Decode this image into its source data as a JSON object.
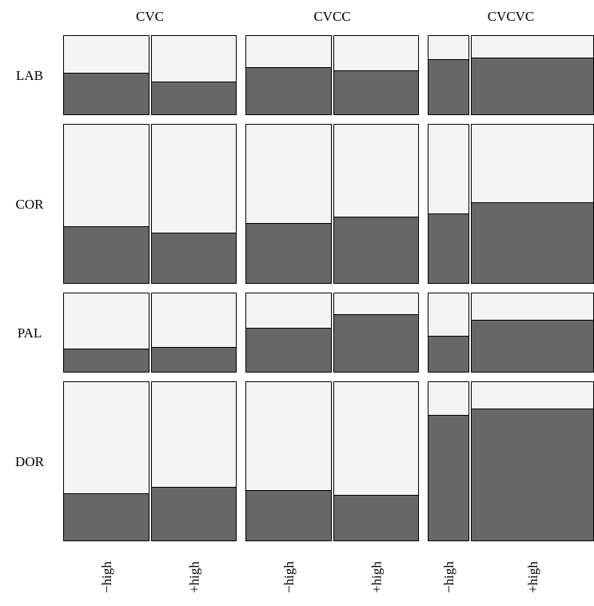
{
  "chart_data": {
    "type": "mosaic",
    "title": "",
    "columns": [
      {
        "name": "CVC",
        "subgroups": [
          "−high",
          "+high"
        ]
      },
      {
        "name": "CVCC",
        "subgroups": [
          "−high",
          "+high"
        ]
      },
      {
        "name": "CVCVC",
        "subgroups": [
          "−high",
          "+high"
        ]
      }
    ],
    "rows": [
      "LAB",
      "COR",
      "PAL",
      "DOR"
    ],
    "fill_color": "#676767",
    "background_color": "#f4f4f4",
    "column_subgroup_widths": [
      [
        0.5,
        0.5
      ],
      [
        0.5,
        0.5
      ],
      [
        0.25,
        0.75
      ]
    ],
    "row_heights": [
      0.15,
      0.3,
      0.15,
      0.3
    ],
    "dark_fraction": [
      [
        [
          0.53,
          0.42
        ],
        [
          0.6,
          0.56
        ],
        [
          0.7,
          0.72
        ]
      ],
      [
        [
          0.36,
          0.32
        ],
        [
          0.38,
          0.42
        ],
        [
          0.44,
          0.51
        ]
      ],
      [
        [
          0.3,
          0.32
        ],
        [
          0.56,
          0.73
        ],
        [
          0.46,
          0.66
        ]
      ],
      [
        [
          0.3,
          0.34
        ],
        [
          0.32,
          0.29
        ],
        [
          0.79,
          0.83
        ]
      ]
    ]
  }
}
